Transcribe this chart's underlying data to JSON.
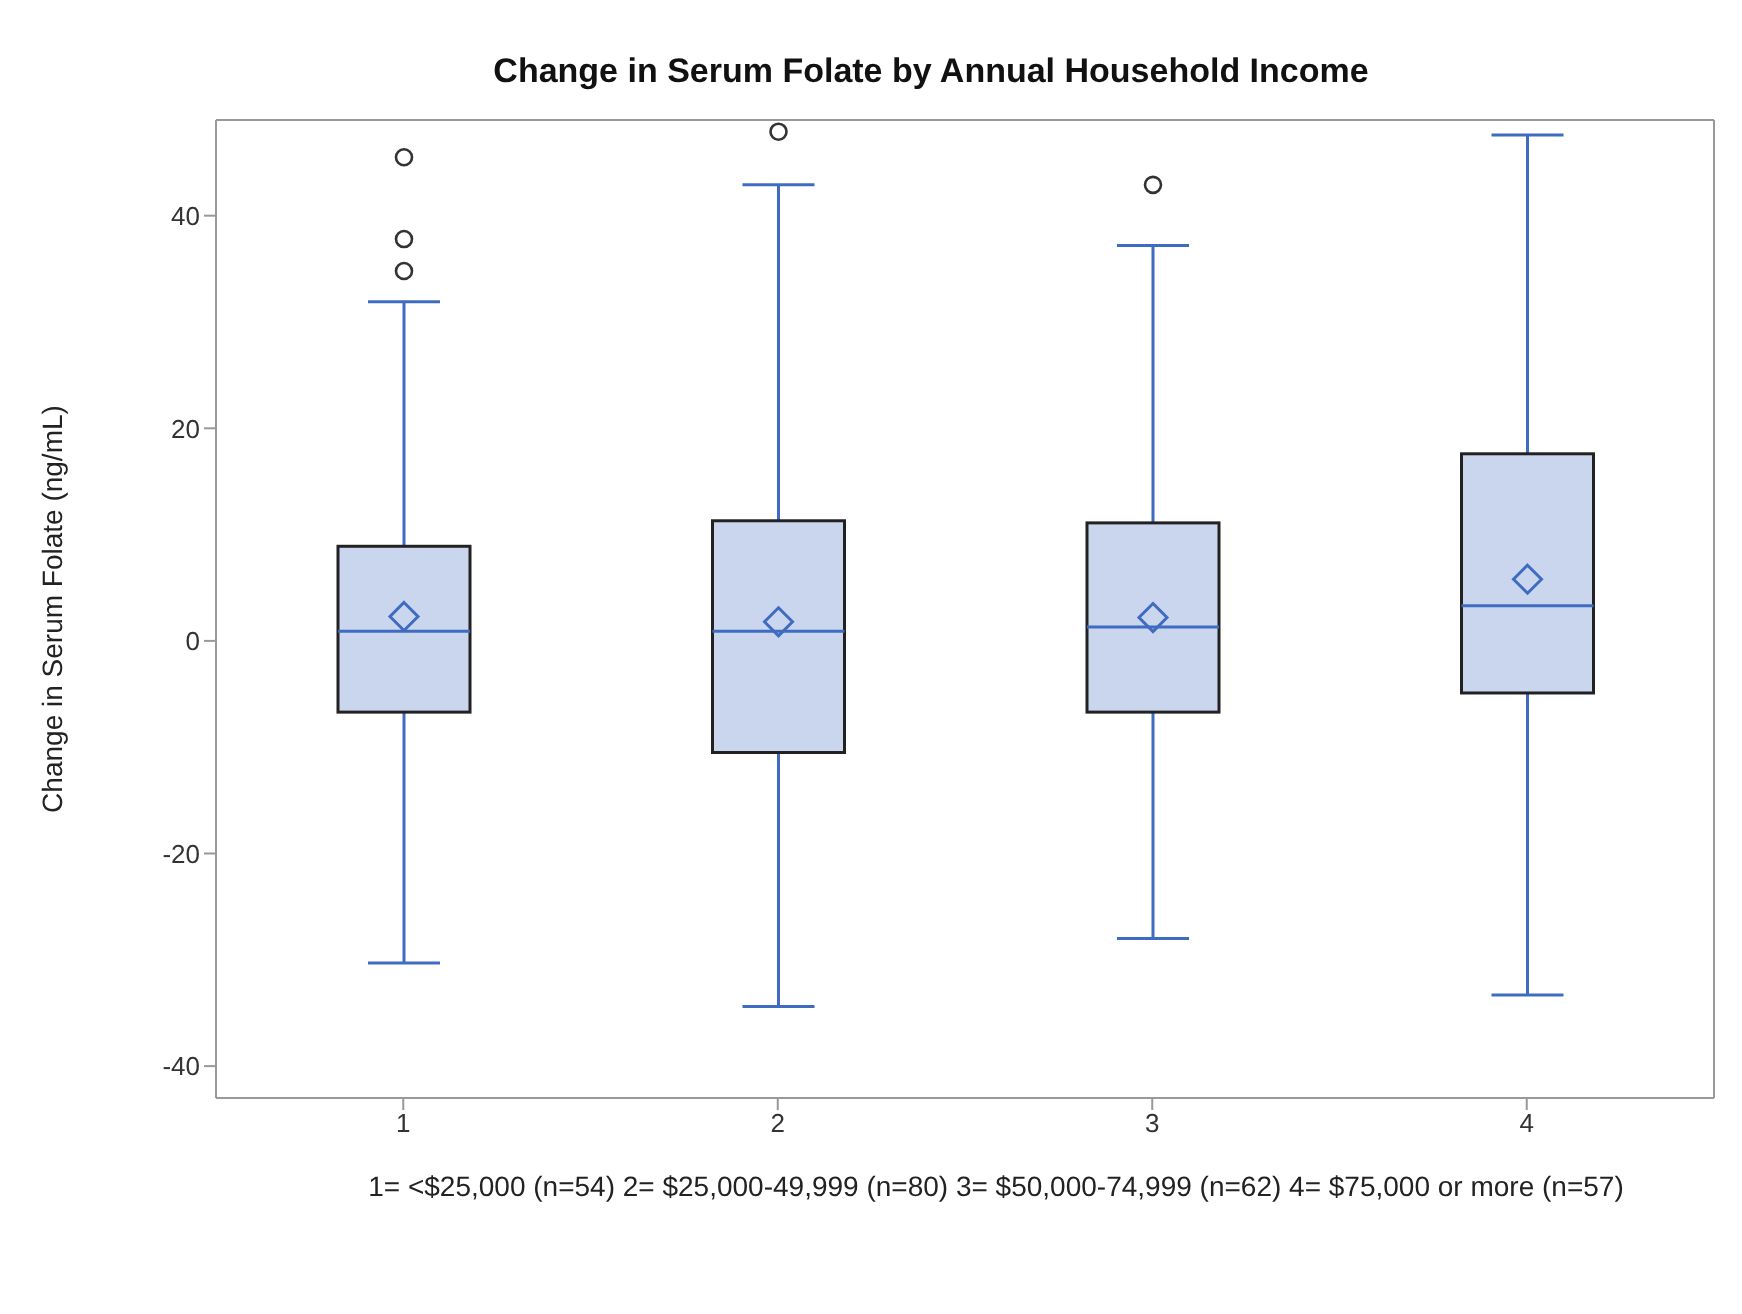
{
  "chart_data": {
    "type": "box",
    "title": "Change in Serum Folate by Annual Household Income",
    "xlabel": "1= <$25,000 (n=54)  2= $25,000-49,999 (n=80)  3= $50,000-74,999 (n=62)  4= $75,000 or more (n=57)",
    "ylabel": "Change in Serum Folate (ng/mL)",
    "categories": [
      "1",
      "2",
      "3",
      "4"
    ],
    "ylim": [
      -43,
      49
    ],
    "yticks": [
      -40,
      -20,
      0,
      20,
      40
    ],
    "grid": false,
    "legend": false,
    "series": [
      {
        "color": "#3f6cc0",
        "boxes": [
          {
            "low": -30.3,
            "q1": -6.7,
            "median": 0.9,
            "q3": 8.9,
            "high": 31.9,
            "mean": 2.3,
            "outliers": [
              34.8,
              37.8,
              45.5
            ]
          },
          {
            "low": -34.4,
            "q1": -10.5,
            "median": 0.9,
            "q3": 11.3,
            "high": 42.9,
            "mean": 1.8,
            "outliers": [
              47.9
            ]
          },
          {
            "low": -28,
            "q1": -6.7,
            "median": 1.3,
            "q3": 11.1,
            "high": 37.2,
            "mean": 2.2,
            "outliers": [
              42.9
            ]
          },
          {
            "low": -33.3,
            "q1": -4.9,
            "median": 3.3,
            "q3": 17.6,
            "high": 47.6,
            "mean": 5.8
          }
        ]
      }
    ]
  }
}
